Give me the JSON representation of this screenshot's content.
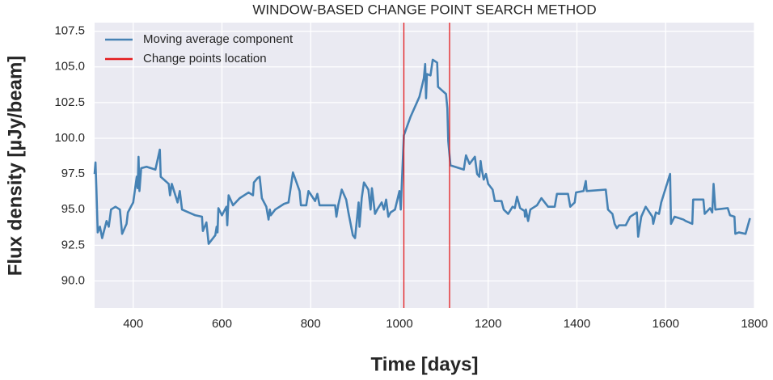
{
  "chart_data": {
    "type": "line",
    "title": "WINDOW-BASED CHANGE POINT SEARCH METHOD",
    "x_label": "Time [days]",
    "y_label": "Flux density [µJy/beam]",
    "xlim": [
      313,
      1800
    ],
    "ylim": [
      88.1,
      108.1
    ],
    "xticks": [
      400,
      600,
      800,
      1000,
      1200,
      1400,
      1600,
      1800
    ],
    "yticks": [
      {
        "value": 90,
        "label": "90.0"
      },
      92.5,
      {
        "value": 95,
        "label": "95.0"
      },
      97.5,
      {
        "value": 100,
        "label": "100.0"
      },
      102.5,
      {
        "value": 105,
        "label": "105.0"
      },
      107.5
    ],
    "grid": true,
    "legend": "upper left",
    "series": [
      {
        "name": "Moving average component",
        "color": "#4682b4",
        "x": [
          313,
          315,
          317,
          320,
          325,
          330,
          340,
          345,
          350,
          360,
          370,
          375,
          385,
          388,
          400,
          408,
          410,
          412,
          414,
          418,
          430,
          450,
          460,
          462,
          480,
          483,
          487,
          500,
          505,
          510,
          540,
          555,
          557,
          565,
          570,
          585,
          588,
          590,
          592,
          600,
          610,
          612,
          615,
          625,
          640,
          660,
          670,
          672,
          680,
          685,
          690,
          700,
          705,
          708,
          710,
          720,
          740,
          750,
          760,
          775,
          778,
          790,
          795,
          810,
          815,
          820,
          855,
          858,
          862,
          870,
          880,
          885,
          895,
          900,
          908,
          910,
          915,
          920,
          930,
          935,
          938,
          945,
          950,
          960,
          965,
          970,
          975,
          980,
          990,
          1000,
          1003,
          1010,
          1025,
          1045,
          1055,
          1058,
          1060,
          1062,
          1070,
          1075,
          1085,
          1087,
          1105,
          1108,
          1110,
          1115,
          1145,
          1150,
          1158,
          1170,
          1175,
          1180,
          1183,
          1185,
          1190,
          1195,
          1200,
          1210,
          1215,
          1230,
          1235,
          1245,
          1255,
          1260,
          1265,
          1272,
          1282,
          1283,
          1285,
          1290,
          1295,
          1310,
          1320,
          1335,
          1350,
          1355,
          1380,
          1385,
          1395,
          1398,
          1415,
          1420,
          1422,
          1465,
          1470,
          1480,
          1485,
          1490,
          1495,
          1510,
          1520,
          1535,
          1538,
          1545,
          1555,
          1570,
          1572,
          1578,
          1585,
          1590,
          1600,
          1610,
          1612,
          1620,
          1640,
          1645,
          1660,
          1662,
          1685,
          1688,
          1700,
          1705,
          1708,
          1712,
          1740,
          1745,
          1755,
          1757,
          1765,
          1780,
          1790
        ],
        "values": [
          97.5,
          98.3,
          96.5,
          93.4,
          93.8,
          93.0,
          94.2,
          93.8,
          95.0,
          95.2,
          95.0,
          93.3,
          94.0,
          94.8,
          95.5,
          97.3,
          96.5,
          98.7,
          96.3,
          97.9,
          98.0,
          97.8,
          99.2,
          97.3,
          96.8,
          96.0,
          96.8,
          95.5,
          96.3,
          95.0,
          94.6,
          94.5,
          93.5,
          94.1,
          92.6,
          93.2,
          93.8,
          93.4,
          95.1,
          94.6,
          95.2,
          93.9,
          96.0,
          95.3,
          95.8,
          96.2,
          96.0,
          96.9,
          97.2,
          97.3,
          95.8,
          95.2,
          94.3,
          95.0,
          94.6,
          95.0,
          95.4,
          95.5,
          97.6,
          96.3,
          95.3,
          95.3,
          96.3,
          95.6,
          96.1,
          95.3,
          95.3,
          94.5,
          95.3,
          96.4,
          95.7,
          94.8,
          93.2,
          93.0,
          95.5,
          93.8,
          95.8,
          96.9,
          96.4,
          95.0,
          96.5,
          94.7,
          95.0,
          95.5,
          95.0,
          95.7,
          94.5,
          94.8,
          95.0,
          96.3,
          95.0,
          100.2,
          101.5,
          102.9,
          104.2,
          105.2,
          102.8,
          104.5,
          104.4,
          105.5,
          105.3,
          103.6,
          103.1,
          102.1,
          99.8,
          98.1,
          97.8,
          98.8,
          98.2,
          98.7,
          97.5,
          97.3,
          98.4,
          97.9,
          97.1,
          97.5,
          96.8,
          96.4,
          95.6,
          95.6,
          95.0,
          94.7,
          95.2,
          95.1,
          95.9,
          95.1,
          94.9,
          94.5,
          95.0,
          94.2,
          95.0,
          95.3,
          95.8,
          95.2,
          95.2,
          96.1,
          96.1,
          95.2,
          95.5,
          96.2,
          96.3,
          97.0,
          96.3,
          96.4,
          95.0,
          94.7,
          94.0,
          93.7,
          93.9,
          93.9,
          94.5,
          94.8,
          93.1,
          94.5,
          95.2,
          94.5,
          94.0,
          94.8,
          94.7,
          95.5,
          96.5,
          97.5,
          94.0,
          94.5,
          94.3,
          94.2,
          94.0,
          95.7,
          95.7,
          94.7,
          95.1,
          94.8,
          96.8,
          95.0,
          95.1,
          94.6,
          94.5,
          93.3,
          93.4,
          93.3,
          94.4
        ]
      },
      {
        "name": "Change points location",
        "color": "#e41a1c",
        "x": [
          1010,
          1113
        ]
      }
    ]
  }
}
